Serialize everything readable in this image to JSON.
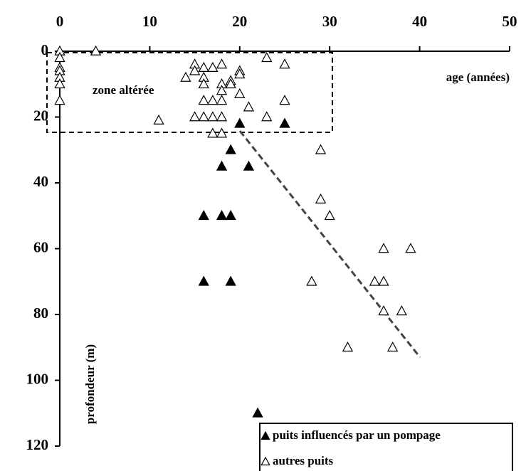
{
  "chart_data": {
    "type": "scatter",
    "xlabel": "age (années)",
    "ylabel": "profondeur (m)",
    "annotation": "zone altérée",
    "xlim": [
      0,
      50
    ],
    "xticks": [
      0,
      10,
      20,
      30,
      40,
      50
    ],
    "ylim": [
      0,
      120
    ],
    "yticks": [
      0,
      20,
      40,
      60,
      80,
      100,
      120
    ],
    "y_inverted": true,
    "series": [
      {
        "name": "puits influencés par un pompage",
        "color": "#000000",
        "marker": "filled",
        "x": [
          20,
          25,
          19,
          18,
          21,
          16,
          18,
          19,
          16,
          19,
          22
        ],
        "y": [
          22,
          22,
          30,
          35,
          35,
          50,
          50,
          50,
          70,
          70,
          110
        ]
      },
      {
        "name": "autres puits",
        "color": "#000000",
        "marker": "open",
        "x": [
          0,
          0,
          0,
          0,
          0,
          0,
          0,
          4,
          23,
          25,
          15,
          15,
          16,
          17,
          18,
          14,
          16,
          16,
          18,
          19,
          19,
          20,
          20,
          18,
          20,
          21,
          16,
          17,
          18,
          25,
          11,
          15,
          16,
          17,
          18,
          23,
          17,
          18,
          29,
          29,
          30,
          36,
          39,
          28,
          35,
          36,
          36,
          38,
          32,
          37
        ],
        "y": [
          0,
          2,
          5,
          6,
          8,
          10,
          15,
          0,
          2,
          4,
          4,
          6,
          5,
          5,
          4,
          8,
          8,
          10,
          10,
          9,
          10,
          6,
          7,
          12,
          13,
          17,
          15,
          15,
          15,
          15,
          21,
          20,
          20,
          20,
          20,
          20,
          25,
          25,
          30,
          45,
          50,
          60,
          60,
          70,
          70,
          70,
          79,
          79,
          90,
          90
        ]
      }
    ]
  }
}
